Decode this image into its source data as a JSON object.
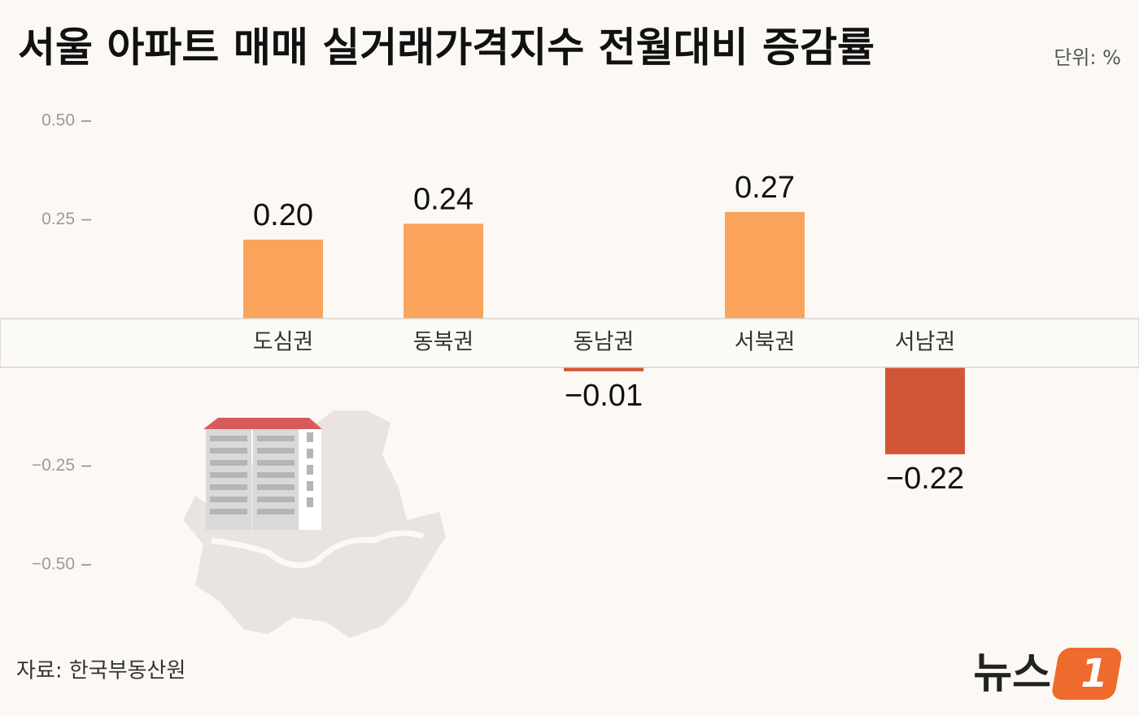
{
  "chart_data": {
    "type": "bar",
    "title": "서울 아파트 매매 실거래가격지수 전월대비 증감률",
    "unit": "단위: %",
    "source": "자료: 한국부동산원",
    "logo": {
      "text": "뉴스",
      "number": "1"
    },
    "categories": [
      "도심권",
      "동북권",
      "동남권",
      "서북권",
      "서남권"
    ],
    "values": [
      0.2,
      0.24,
      -0.01,
      0.27,
      -0.22
    ],
    "value_labels": [
      "0.20",
      "0.24",
      "−0.01",
      "0.27",
      "−0.22"
    ],
    "colors": [
      "#f9a45a",
      "#f9a45a",
      "#d35537",
      "#f9a45a",
      "#d35537"
    ],
    "ylim": [
      -0.5,
      0.5
    ],
    "yticks": [
      {
        "value": 0.5,
        "label": "0.50"
      },
      {
        "value": 0.25,
        "label": "0.25"
      },
      {
        "value": -0.25,
        "label": "−0.25"
      },
      {
        "value": -0.5,
        "label": "−0.50"
      }
    ]
  }
}
